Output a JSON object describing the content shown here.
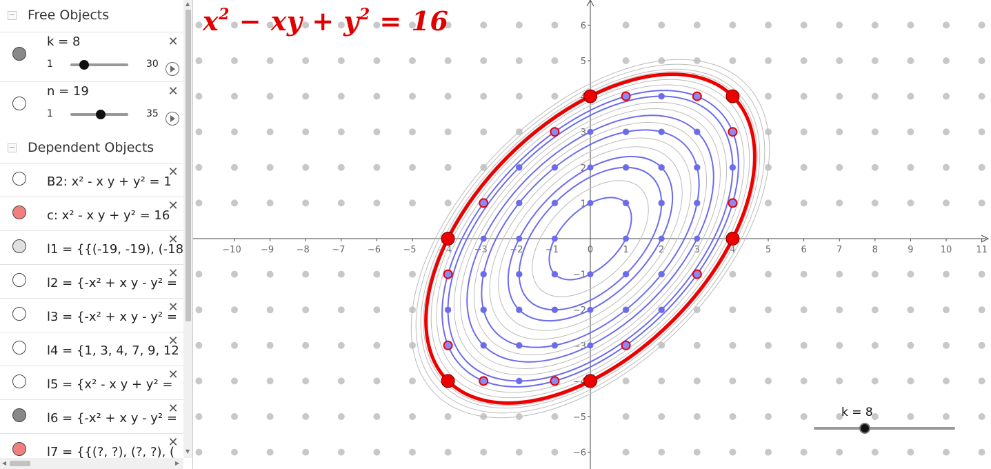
{
  "algebra": {
    "free_header": "Free Objects",
    "dependent_header": "Dependent Objects",
    "toggle_symbol": "−",
    "close_symbol": "✕",
    "free_objects": [
      {
        "label": "k = 8",
        "min": "1",
        "max": "30",
        "value": 8,
        "vis_color": "#888888"
      },
      {
        "label": "n = 19",
        "min": "1",
        "max": "35",
        "value": 19,
        "vis_color": "#ffffff"
      }
    ],
    "dependent_objects": [
      {
        "label": "B2: x² - x y + y² = 1",
        "vis_color": "#ffffff"
      },
      {
        "label": "c: x² - x y + y² = 16",
        "vis_color": "#f08080"
      },
      {
        "label": "l1 = {{(-19, -19), (-18",
        "vis_color": "#e0e0e0"
      },
      {
        "label": "l2 = {-x² + x y - y² =",
        "vis_color": "#ffffff"
      },
      {
        "label": "l3 = {-x² + x y - y² =",
        "vis_color": "#ffffff"
      },
      {
        "label": "l4 = {1, 3, 4, 7, 9, 12",
        "vis_color": "#ffffff"
      },
      {
        "label": "l5 = {x² - x y + y² =",
        "vis_color": "#ffffff"
      },
      {
        "label": "l6 = {-x² + x y - y² =",
        "vis_color": "#888888"
      },
      {
        "label": "l7 = {{(?, ?), (?, ?), (",
        "vis_color": "#f08080"
      }
    ]
  },
  "graphics": {
    "equation_parts": [
      "x",
      "2",
      " − xy + y",
      "2",
      " = 16"
    ],
    "slider_label": "k = 8",
    "slider_value": 8,
    "slider_min": 1,
    "slider_max": 30,
    "x_range": [
      -11,
      11
    ],
    "y_range": [
      -6,
      6
    ],
    "x_ticks": [
      "−10",
      "−9",
      "−8",
      "−7",
      "−6",
      "−5",
      "−4",
      "−3",
      "−2",
      "−1",
      "0",
      "1",
      "2",
      "3",
      "4",
      "5",
      "6",
      "7",
      "8",
      "9",
      "10",
      "11"
    ],
    "y_ticks": [
      "6",
      "5",
      "4",
      "3",
      "2",
      "1",
      "−1",
      "−2",
      "−3",
      "−4",
      "−5",
      "−6"
    ],
    "colors": {
      "main_curve": "#ee0000",
      "blue_curves": "#6b6bef",
      "gray_curves": "#bbbbbb",
      "grid_dots": "#c8c8c8",
      "axes": "#444444"
    },
    "main_level": 16,
    "blue_levels": [
      1,
      3,
      4,
      7,
      9,
      12,
      13
    ],
    "gray_levels": [
      2,
      5,
      6,
      8,
      10,
      11,
      14,
      15,
      16.5,
      17,
      18,
      19
    ],
    "large_red_points": [
      [
        0,
        4
      ],
      [
        4,
        4
      ],
      [
        -4,
        0
      ],
      [
        4,
        0
      ],
      [
        -4,
        -4
      ],
      [
        0,
        -4
      ]
    ],
    "red_ring_points": [
      [
        1,
        4
      ],
      [
        3,
        4
      ],
      [
        -1,
        3
      ],
      [
        4,
        3
      ],
      [
        -3,
        1
      ],
      [
        4,
        1
      ],
      [
        -4,
        -1
      ],
      [
        3,
        -1
      ],
      [
        -4,
        -3
      ],
      [
        1,
        -3
      ],
      [
        -3,
        -4
      ],
      [
        -1,
        -4
      ]
    ]
  }
}
